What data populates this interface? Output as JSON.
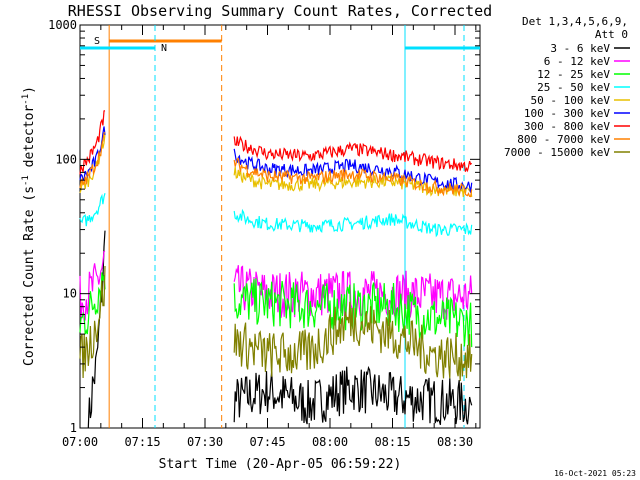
{
  "colors": {
    "background": "#ffffff",
    "axis": "#000000",
    "cyan": "#00e0ff",
    "orange": "#ff8000",
    "s_label": "#ff8000",
    "n_label": "#00e0ff"
  },
  "chart_data": {
    "type": "line",
    "title": "RHESSI Observing Summary Count Rates, Corrected",
    "xlabel": "Start Time (20-Apr-05 06:59:22)",
    "ylabel_parts": [
      "Corrected Count Rate (s",
      "-1",
      " detector",
      "-1",
      ")"
    ],
    "footer_stamp": "16-Oct-2021 05:23",
    "y_scale": "log",
    "ylim": [
      1,
      1000
    ],
    "xlim": [
      0,
      96
    ],
    "x_tick_labels": [
      {
        "t": 0,
        "label": "07:00"
      },
      {
        "t": 15,
        "label": "07:15"
      },
      {
        "t": 30,
        "label": "07:30"
      },
      {
        "t": 45,
        "label": "07:45"
      },
      {
        "t": 60,
        "label": "08:00"
      },
      {
        "t": 75,
        "label": "08:15"
      },
      {
        "t": 90,
        "label": "08:30"
      }
    ],
    "y_tick_labels": [
      {
        "v": 1,
        "label": "1"
      },
      {
        "v": 10,
        "label": "10"
      },
      {
        "v": 100,
        "label": "100"
      },
      {
        "v": 1000,
        "label": "1000"
      }
    ],
    "legend_header": [
      "Det 1,3,4,5,6,9,",
      "Att 0"
    ],
    "legend_placement": "right",
    "series": [
      {
        "name": "3 - 6 keV",
        "color": "#000000",
        "segments": [
          {
            "t": [
              2,
              3,
              4,
              5,
              6
            ],
            "v": [
              1,
              2,
              3,
              8,
              25
            ]
          },
          {
            "t": [
              37,
              45,
              55,
              65,
              75,
              85,
              94
            ],
            "v": [
              1.6,
              1.9,
              1.5,
              2.0,
              1.7,
              1.6,
              1.5
            ]
          }
        ]
      },
      {
        "name": "6 - 12 keV",
        "color": "#ff00ff",
        "segments": [
          {
            "t": [
              0,
              2,
              4,
              6
            ],
            "v": [
              9,
              10,
              12,
              18
            ]
          },
          {
            "t": [
              37,
              45,
              55,
              65,
              75,
              85,
              94
            ],
            "v": [
              11,
              10,
              10,
              10,
              10,
              9.5,
              9.5
            ]
          }
        ]
      },
      {
        "name": "12 - 25 keV",
        "color": "#00ff00",
        "segments": [
          {
            "t": [
              0,
              2,
              4,
              6
            ],
            "v": [
              6,
              7,
              10,
              15
            ]
          },
          {
            "t": [
              37,
              45,
              55,
              65,
              75,
              85,
              94
            ],
            "v": [
              9,
              8.5,
              8,
              8,
              8,
              6.5,
              6
            ]
          }
        ]
      },
      {
        "name": "25 - 50 keV",
        "color": "#00ffff",
        "segments": [
          {
            "t": [
              0,
              2,
              4,
              6
            ],
            "v": [
              33,
              36,
              42,
              55
            ]
          },
          {
            "t": [
              37,
              40,
              45,
              55,
              65,
              75,
              80,
              85,
              94
            ],
            "v": [
              40,
              36,
              33,
              32,
              33,
              36,
              33,
              30,
              30
            ]
          }
        ]
      },
      {
        "name": "50 - 100 keV",
        "color": "#e8c000",
        "segments": [
          {
            "t": [
              0,
              2,
              4,
              6
            ],
            "v": [
              60,
              70,
              90,
              150
            ]
          },
          {
            "t": [
              37,
              40,
              45,
              55,
              65,
              75,
              85,
              94
            ],
            "v": [
              80,
              72,
              65,
              65,
              68,
              68,
              60,
              57
            ]
          }
        ]
      },
      {
        "name": "100 - 300 keV",
        "color": "#0000ff",
        "segments": [
          {
            "t": [
              0,
              2,
              4,
              6
            ],
            "v": [
              70,
              80,
              100,
              170
            ]
          },
          {
            "t": [
              37,
              40,
              45,
              55,
              65,
              75,
              85,
              94
            ],
            "v": [
              110,
              95,
              85,
              82,
              90,
              82,
              68,
              63
            ]
          }
        ]
      },
      {
        "name": "300 - 800 keV",
        "color": "#ff0000",
        "segments": [
          {
            "t": [
              0,
              2,
              4,
              6
            ],
            "v": [
              85,
              100,
              130,
              220
            ]
          },
          {
            "t": [
              37,
              40,
              45,
              55,
              65,
              75,
              85,
              94
            ],
            "v": [
              135,
              125,
              110,
              105,
              120,
              108,
              95,
              88
            ]
          }
        ]
      },
      {
        "name": "800 - 7000 keV",
        "color": "#ff8000",
        "segments": [
          {
            "t": [
              0,
              2,
              4,
              6
            ],
            "v": [
              62,
              75,
              95,
              150
            ]
          },
          {
            "t": [
              37,
              40,
              45,
              55,
              65,
              75,
              85,
              94
            ],
            "v": [
              95,
              85,
              75,
              72,
              78,
              72,
              62,
              58
            ]
          }
        ]
      },
      {
        "name": "7000 - 15000 keV",
        "color": "#808000",
        "segments": [
          {
            "t": [
              0,
              2,
              4,
              6
            ],
            "v": [
              3.2,
              4,
              6,
              12
            ]
          },
          {
            "t": [
              37,
              45,
              55,
              60,
              65,
              75,
              85,
              94
            ],
            "v": [
              4.5,
              3.5,
              3.6,
              5,
              6.5,
              5,
              3.5,
              3.3
            ]
          }
        ]
      }
    ],
    "events": {
      "saa": {
        "label": "S",
        "t_start": 7,
        "t_end": 34
      },
      "night": [
        {
          "label": "N",
          "t_start": 0,
          "t_end": 18
        },
        {
          "label": "",
          "t_start": 78,
          "t_end": 96
        }
      ]
    }
  }
}
